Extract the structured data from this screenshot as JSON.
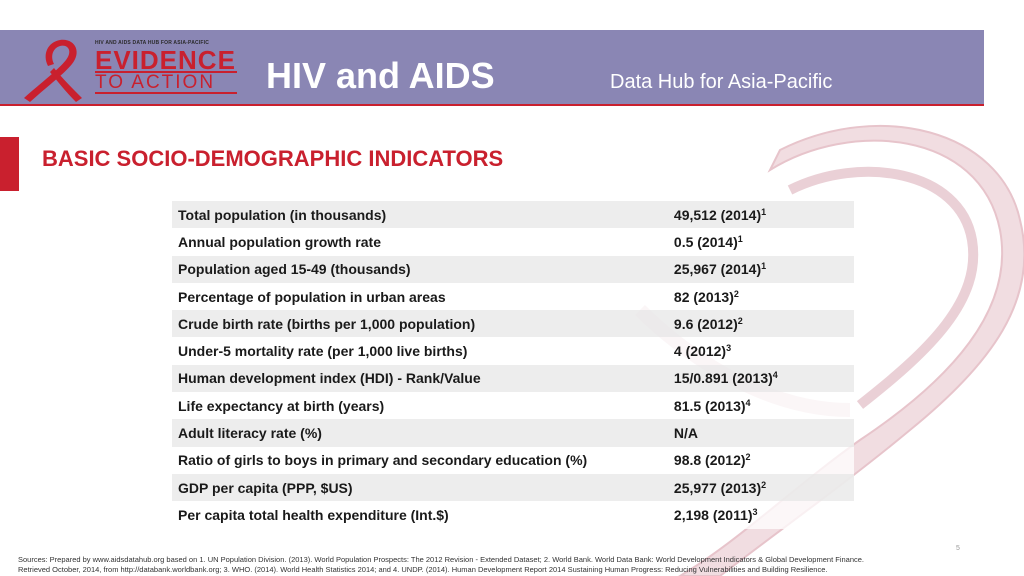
{
  "header": {
    "logo": {
      "top_text": "HIV AND AIDS DATA HUB FOR ASIA-PACIFIC",
      "line1": "EVIDENCE",
      "line2": "TO ACTION"
    },
    "title": "HIV and AIDS",
    "subtitle": "Data Hub for Asia-Pacific"
  },
  "section": {
    "title": "BASIC SOCIO-DEMOGRAPHIC INDICATORS"
  },
  "indicators": [
    {
      "label": "Total population (in thousands)",
      "value": "49,512 (2014)",
      "ref": "1"
    },
    {
      "label": "Annual population growth rate",
      "value": "0.5 (2014)",
      "ref": "1"
    },
    {
      "label": "Population aged 15-49 (thousands)",
      "value": "25,967 (2014)",
      "ref": "1"
    },
    {
      "label": "Percentage of population in urban areas",
      "value": "82 (2013)",
      "ref": "2"
    },
    {
      "label": "Crude birth rate (births per 1,000 population)",
      "value": "9.6 (2012)",
      "ref": "2"
    },
    {
      "label": "Under-5 mortality rate (per 1,000 live births)",
      "value": "4 (2012)",
      "ref": "3"
    },
    {
      "label": "Human development index (HDI) - Rank/Value",
      "value": "15/0.891 (2013)",
      "ref": "4"
    },
    {
      "label": "Life expectancy at birth (years)",
      "value": "81.5 (2013)",
      "ref": "4"
    },
    {
      "label": "Adult literacy rate (%)",
      "value": "N/A",
      "ref": ""
    },
    {
      "label": "Ratio of girls to boys in primary and secondary education (%)",
      "value": "98.8 (2012)",
      "ref": "2"
    },
    {
      "label": "GDP per capita (PPP, $US)",
      "value": "25,977 (2013)",
      "ref": "2"
    },
    {
      "label": "Per capita total health expenditure (Int.$)",
      "value": "2,198 (2011)",
      "ref": "3"
    }
  ],
  "footer": {
    "sources_line1": "Sources: Prepared by www.aidsdatahub.org based on 1. UN Population Division. (2013). World Population Prospects: The 2012 Revision - Extended Dataset;  2. World Bank. World Data Bank: World Development Indicators & Global Development Finance.",
    "sources_line2": "Retrieved October, 2014, from http://databank.worldbank.org; 3. WHO. (2014). World Health Statistics 2014; and  4. UNDP. (2014). Human Development Report 2014 Sustaining Human Progress: Reducing Vulnerabilities and Building Resilience.",
    "page_number": "5"
  },
  "colors": {
    "header_band": "#8a86b4",
    "accent_red": "#c9202e",
    "row_shade": "#ebebeb"
  }
}
